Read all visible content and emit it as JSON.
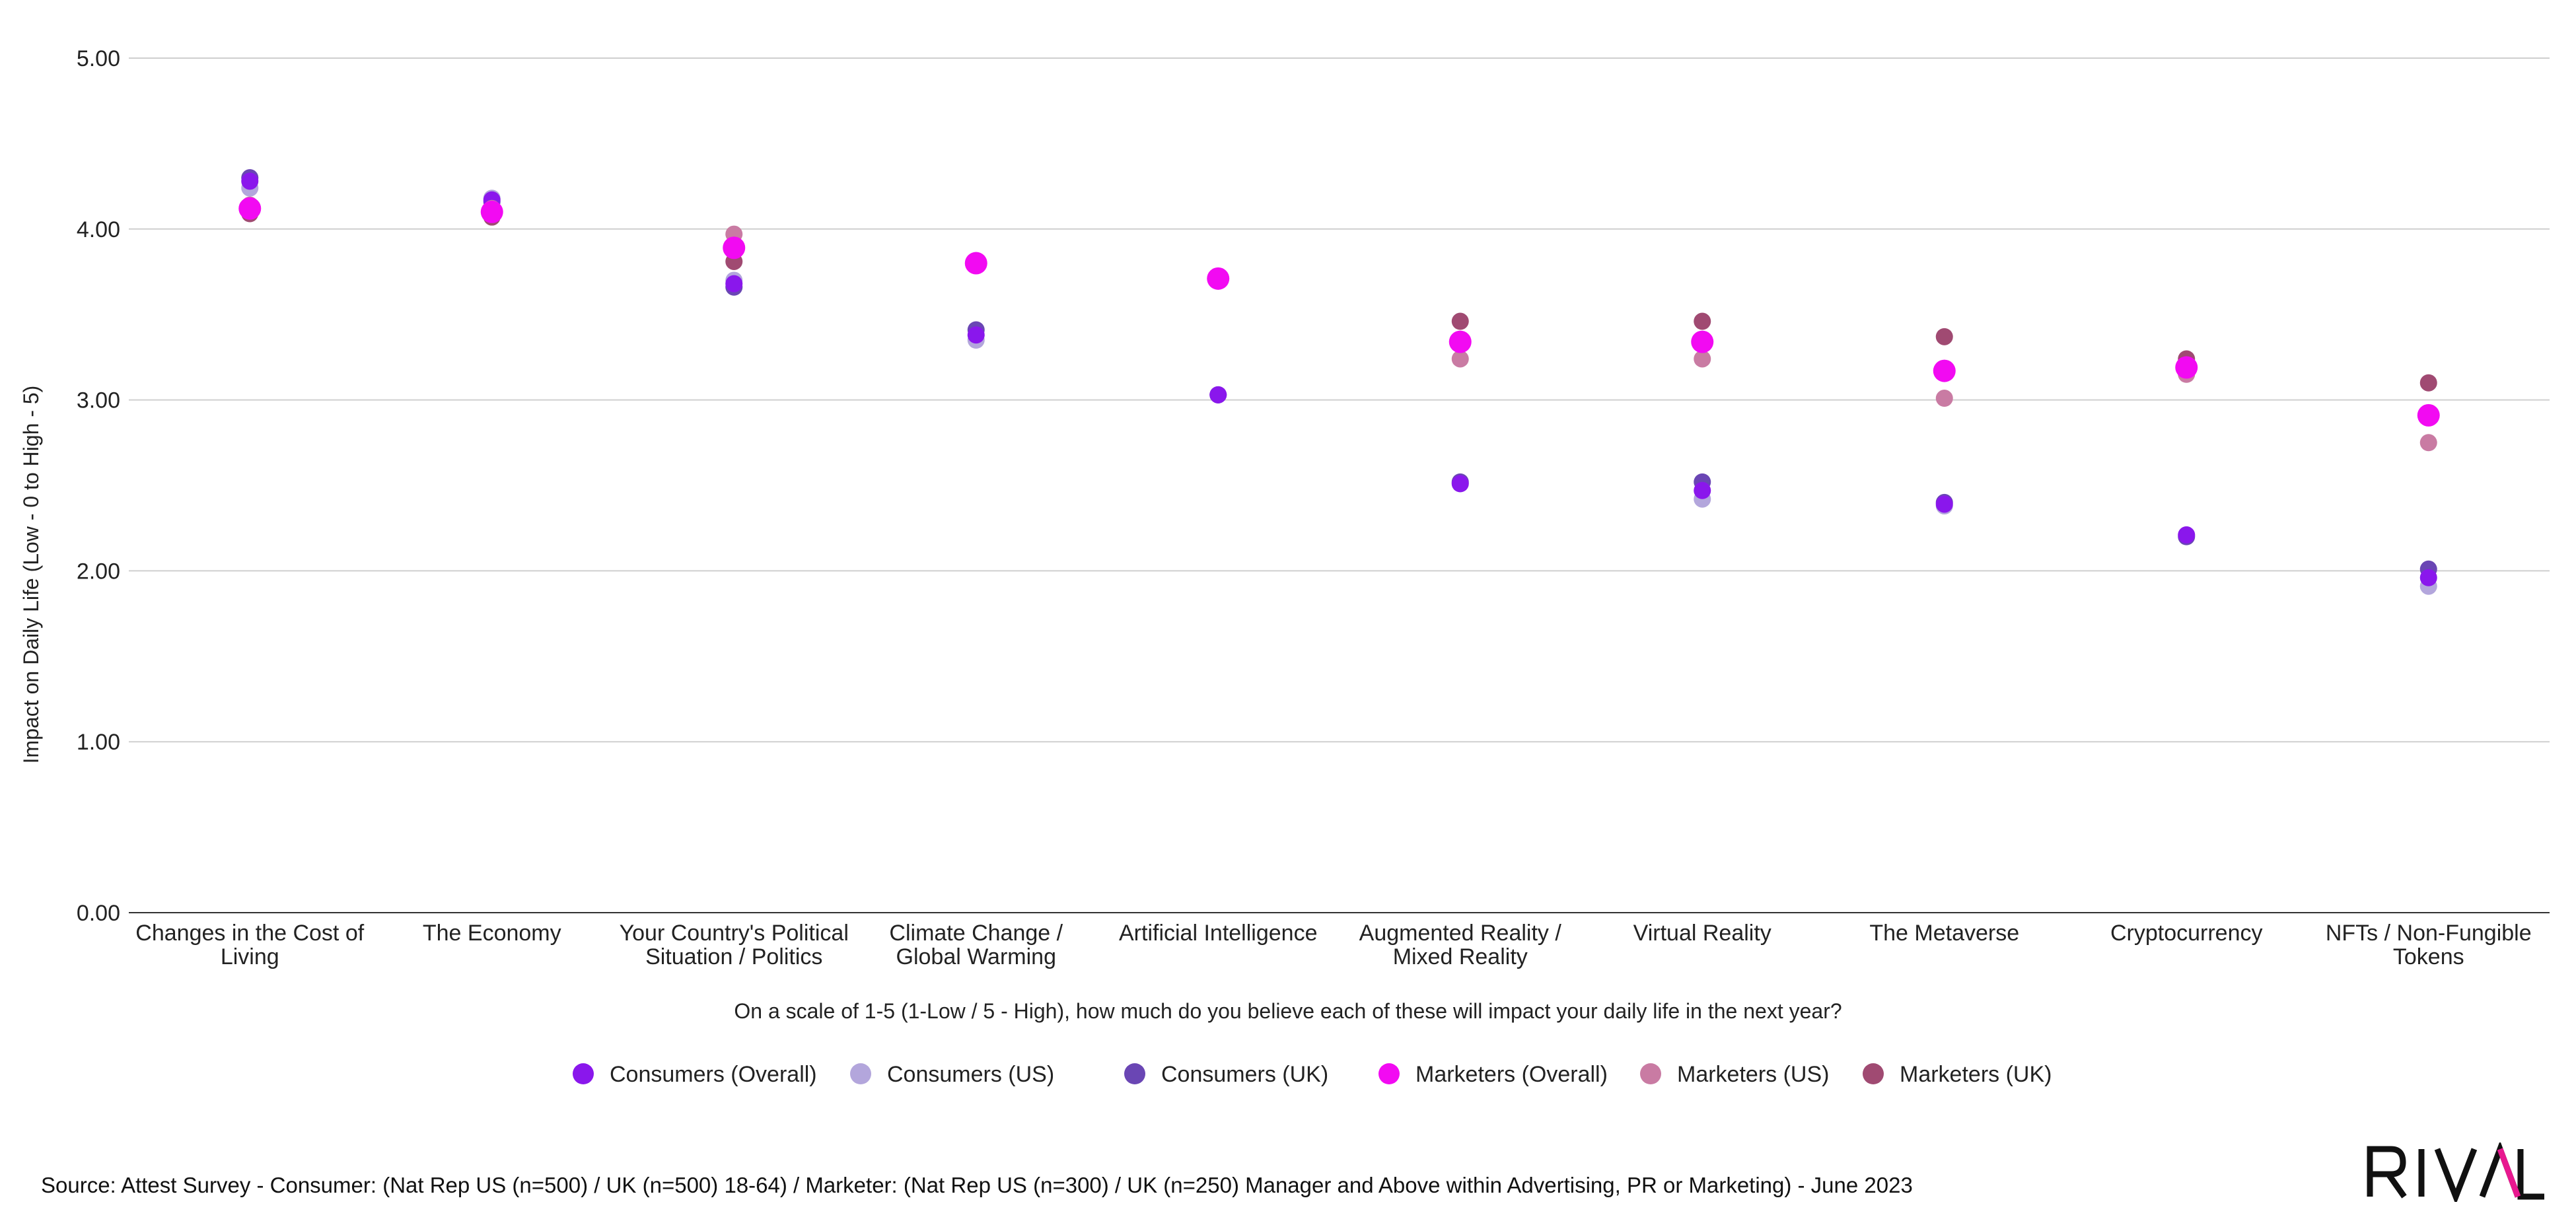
{
  "chart_data": {
    "type": "scatter",
    "ylabel": "Impact on Daily Life (Low - 0 to High - 5)",
    "xlabel": "On a scale of 1-5 (1-Low / 5 - High), how much do you believe each of these will impact your daily life in the next year?",
    "ylim": [
      0,
      5
    ],
    "yticks": [
      "0.00",
      "1.00",
      "2.00",
      "3.00",
      "4.00",
      "5.00"
    ],
    "grid": true,
    "legend_position": "bottom",
    "categories": [
      [
        "Changes in the Cost of",
        "Living"
      ],
      [
        "The Economy"
      ],
      [
        "Your Country's Political",
        "Situation / Politics"
      ],
      [
        "Climate Change /",
        "Global Warming"
      ],
      [
        "Artificial Intelligence"
      ],
      [
        "Augmented Reality /",
        "Mixed Reality"
      ],
      [
        "Virtual Reality"
      ],
      [
        "The Metaverse"
      ],
      [
        "Cryptocurrency"
      ],
      [
        "NFTs / Non-Fungible",
        "Tokens"
      ]
    ],
    "series": [
      {
        "name": "Consumers (US)",
        "color": "#b3a6dc",
        "size": "small",
        "values": [
          4.24,
          4.18,
          3.7,
          3.35,
          3.03,
          2.51,
          2.42,
          2.38,
          2.21,
          1.91
        ]
      },
      {
        "name": "Consumers (UK)",
        "color": "#6a46b4",
        "size": "small",
        "values": [
          4.3,
          4.16,
          3.66,
          3.41,
          3.03,
          2.52,
          2.52,
          2.4,
          2.2,
          2.01
        ]
      },
      {
        "name": "Consumers (Overall)",
        "color": "#8a17ec",
        "size": "small",
        "values": [
          4.28,
          4.17,
          3.68,
          3.38,
          3.03,
          2.51,
          2.47,
          2.39,
          2.21,
          1.96
        ]
      },
      {
        "name": "Marketers (US)",
        "color": "#c97ba3",
        "size": "small",
        "values": [
          4.14,
          4.12,
          3.97,
          3.81,
          3.7,
          3.24,
          3.24,
          3.01,
          3.15,
          2.75
        ]
      },
      {
        "name": "Marketers (UK)",
        "color": "#a04a72",
        "size": "small",
        "values": [
          4.09,
          4.07,
          3.81,
          3.79,
          3.72,
          3.46,
          3.46,
          3.37,
          3.24,
          3.1
        ]
      },
      {
        "name": "Marketers (Overall)",
        "color": "#f20af2",
        "size": "large",
        "values": [
          4.12,
          4.1,
          3.89,
          3.8,
          3.71,
          3.34,
          3.34,
          3.17,
          3.19,
          2.91
        ]
      }
    ],
    "legend": [
      {
        "name": "Consumers (Overall)",
        "color": "#8a17ec"
      },
      {
        "name": "Consumers (US)",
        "color": "#b3a6dc"
      },
      {
        "name": "Consumers (UK)",
        "color": "#6a46b4"
      },
      {
        "name": "Marketers (Overall)",
        "color": "#f20af2"
      },
      {
        "name": "Marketers (US)",
        "color": "#c97ba3"
      },
      {
        "name": "Marketers (UK)",
        "color": "#a04a72"
      }
    ]
  },
  "footer": {
    "source": "Source: Attest Survey - Consumer:  (Nat Rep US (n=500) / UK (n=500) 18-64) / Marketer:  (Nat Rep US (n=300) / UK (n=250) Manager and Above within Advertising, PR or Marketing) - June 2023",
    "logo_text": "RIVAL",
    "logo_accent_color": "#e8188f"
  }
}
